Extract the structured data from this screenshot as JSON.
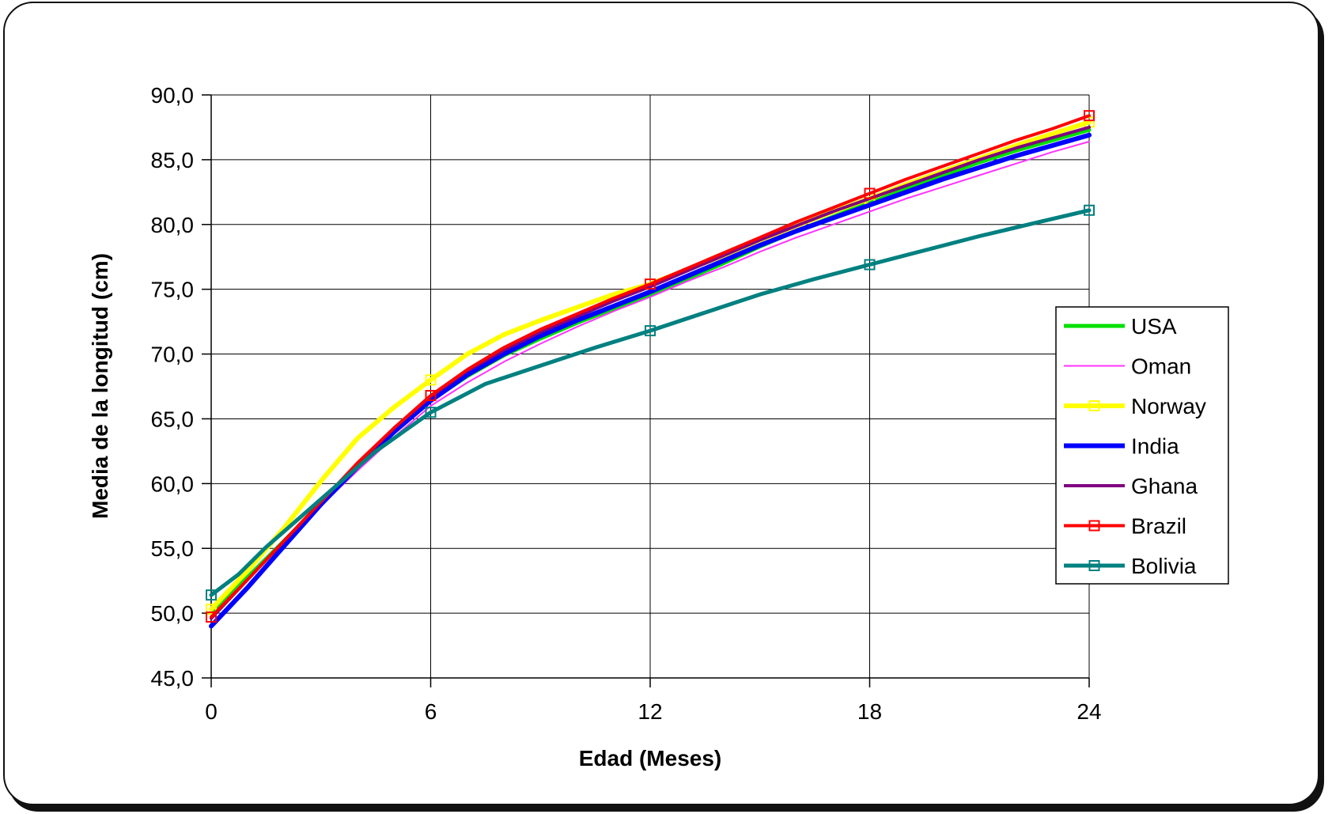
{
  "chart_data": {
    "type": "line",
    "xlabel": "Edad (Meses)",
    "ylabel": "Media de la longitud (cm)",
    "x_ticks": [
      "0",
      "6",
      "12",
      "18",
      "24"
    ],
    "y_ticks": [
      "45,0",
      "50,0",
      "55,0",
      "60,0",
      "65,0",
      "70,0",
      "75,0",
      "80,0",
      "85,0",
      "90,0"
    ],
    "xlim": [
      0,
      24
    ],
    "ylim": [
      45,
      90
    ],
    "grid": true,
    "legend_position": "right",
    "series": [
      {
        "name": "USA",
        "color": "#00e000",
        "width": 5,
        "marker": false,
        "x": [
          0,
          1,
          2,
          3,
          4,
          5,
          6,
          7,
          8,
          9,
          10,
          11,
          12,
          13,
          14,
          15,
          16,
          17,
          18,
          19,
          20,
          21,
          22,
          23,
          24
        ],
        "y": [
          50.0,
          52.8,
          55.6,
          58.4,
          61.2,
          64.0,
          66.4,
          68.3,
          69.9,
          71.2,
          72.4,
          73.5,
          74.6,
          75.8,
          77.0,
          78.3,
          79.5,
          80.6,
          81.7,
          82.8,
          83.8,
          84.8,
          85.7,
          86.5,
          87.3
        ]
      },
      {
        "name": "Oman",
        "color": "#ff33ff",
        "width": 2,
        "marker": false,
        "x": [
          0,
          1,
          2,
          3,
          4,
          5,
          6,
          7,
          8,
          9,
          10,
          11,
          12,
          13,
          14,
          15,
          16,
          17,
          18,
          19,
          20,
          21,
          22,
          23,
          24
        ],
        "y": [
          49.8,
          52.7,
          55.5,
          58.3,
          61.0,
          63.6,
          66.0,
          67.8,
          69.4,
          70.8,
          72.1,
          73.3,
          74.4,
          75.6,
          76.7,
          77.9,
          79.0,
          80.0,
          81.0,
          82.0,
          82.9,
          83.8,
          84.7,
          85.6,
          86.4
        ]
      },
      {
        "name": "Norway",
        "color": "#ffff00",
        "width": 6,
        "marker": true,
        "x": [
          0,
          1,
          2,
          3,
          4,
          5,
          6,
          7,
          8,
          9,
          10,
          11,
          12,
          13,
          14,
          15,
          16,
          17,
          18,
          19,
          20,
          21,
          22,
          23,
          24
        ],
        "y": [
          50.3,
          53.3,
          56.6,
          60.2,
          63.5,
          65.9,
          68.0,
          70.0,
          71.5,
          72.6,
          73.6,
          74.6,
          75.4,
          76.5,
          77.6,
          78.8,
          79.9,
          81.0,
          82.0,
          83.1,
          84.1,
          85.1,
          86.1,
          87.0,
          87.9
        ]
      },
      {
        "name": "India",
        "color": "#0000ff",
        "width": 6,
        "marker": false,
        "x": [
          0,
          1,
          2,
          3,
          4,
          5,
          6,
          7,
          8,
          9,
          10,
          11,
          12,
          13,
          14,
          15,
          16,
          17,
          18,
          19,
          20,
          21,
          22,
          23,
          24
        ],
        "y": [
          49.0,
          52.0,
          55.2,
          58.4,
          61.3,
          64.0,
          66.4,
          68.4,
          70.0,
          71.4,
          72.6,
          73.7,
          74.8,
          76.0,
          77.2,
          78.4,
          79.5,
          80.5,
          81.5,
          82.5,
          83.5,
          84.4,
          85.3,
          86.1,
          86.9
        ]
      },
      {
        "name": "Ghana",
        "color": "#800080",
        "width": 4,
        "marker": false,
        "x": [
          0,
          1,
          2,
          3,
          4,
          5,
          6,
          7,
          8,
          9,
          10,
          11,
          12,
          13,
          14,
          15,
          16,
          17,
          18,
          19,
          20,
          21,
          22,
          23,
          24
        ],
        "y": [
          49.6,
          52.6,
          55.6,
          58.6,
          61.5,
          64.3,
          66.7,
          68.7,
          70.3,
          71.7,
          72.9,
          74.1,
          75.2,
          76.4,
          77.6,
          78.8,
          79.9,
          81.0,
          82.0,
          83.0,
          84.0,
          85.0,
          85.9,
          86.7,
          87.5
        ]
      },
      {
        "name": "Brazil",
        "color": "#ff0000",
        "width": 4,
        "marker": true,
        "x": [
          0,
          1,
          2,
          3,
          4,
          5,
          6,
          7,
          8,
          9,
          10,
          11,
          12,
          13,
          14,
          15,
          16,
          17,
          18,
          19,
          20,
          21,
          22,
          23,
          24
        ],
        "y": [
          49.7,
          52.6,
          55.6,
          58.6,
          61.6,
          64.3,
          66.8,
          68.8,
          70.5,
          71.9,
          73.1,
          74.3,
          75.4,
          76.6,
          77.8,
          79.0,
          80.2,
          81.3,
          82.4,
          83.5,
          84.5,
          85.5,
          86.5,
          87.4,
          88.4
        ]
      },
      {
        "name": "Bolivia",
        "color": "#008080",
        "width": 5,
        "marker": true,
        "x": [
          0,
          0.75,
          1.5,
          3,
          4.5,
          6,
          7.5,
          9,
          10.5,
          12,
          13.5,
          15,
          16.5,
          18,
          19.5,
          21,
          22.5,
          24
        ],
        "y": [
          51.4,
          53.0,
          55.1,
          58.8,
          62.5,
          65.5,
          67.7,
          69.1,
          70.5,
          71.8,
          73.2,
          74.6,
          75.8,
          76.9,
          78.0,
          79.1,
          80.1,
          81.1
        ]
      }
    ]
  }
}
